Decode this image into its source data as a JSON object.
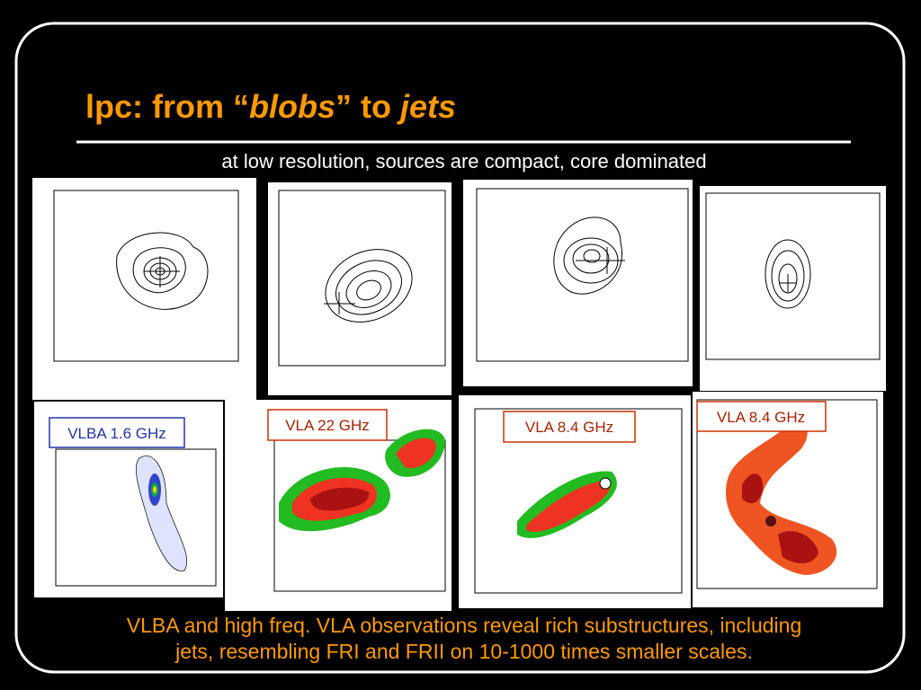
{
  "title": {
    "parts": [
      "lpc: from “",
      "blobs",
      "” to ",
      "jets"
    ]
  },
  "subtitle": "at low resolution, sources are compact, core dominated",
  "panel_labels": [
    "VLBA 1.6 GHz",
    "VLA 22 GHz",
    "VLA 8.4 GHz",
    "VLA 8.4 GHz"
  ],
  "caption": [
    "VLBA and high freq. VLA observations reveal rich substructures, including",
    "jets, resembling FRI and FRII on 10-1000 times smaller scales."
  ]
}
